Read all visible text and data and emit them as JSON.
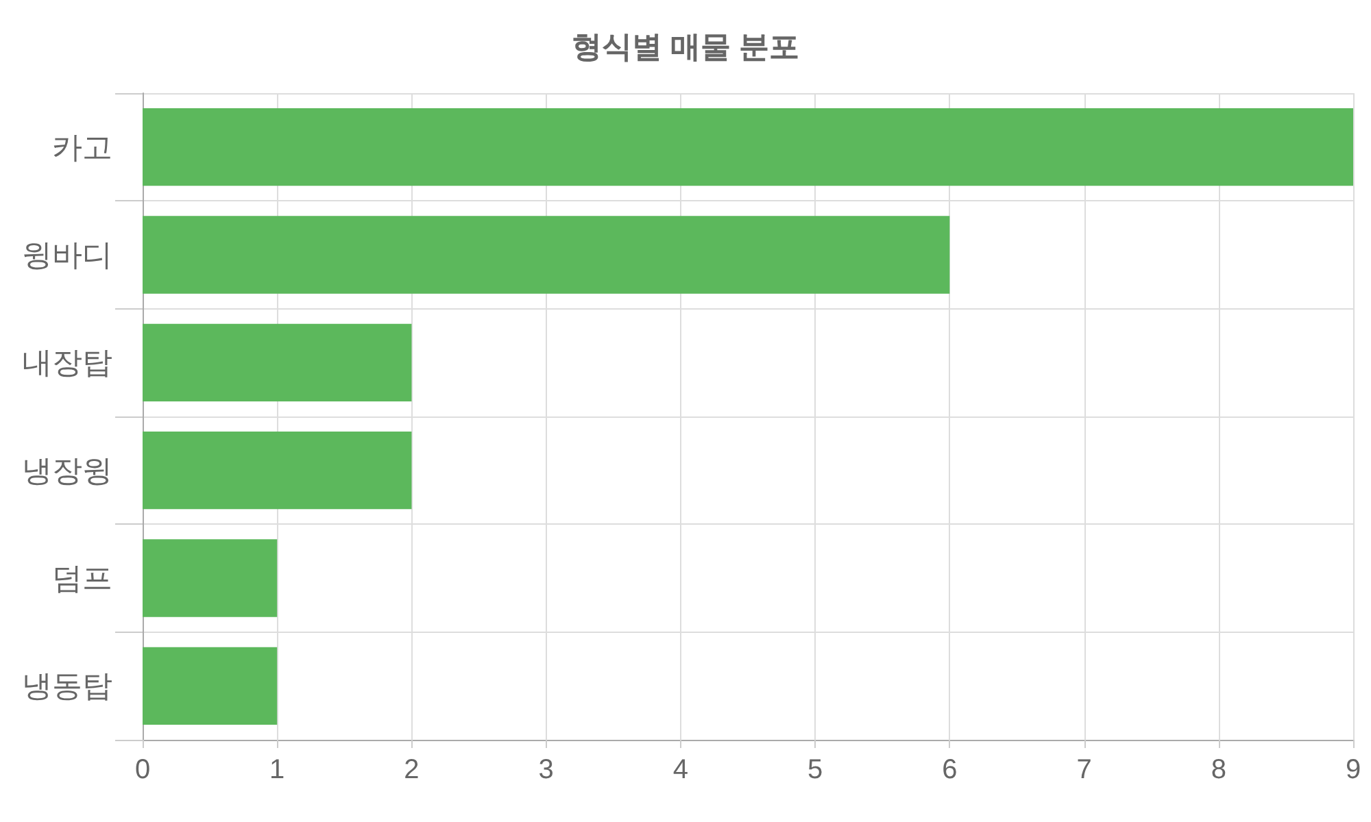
{
  "chart_data": {
    "type": "bar",
    "title": "형식별 매물 분포",
    "orientation": "horizontal",
    "categories": [
      "카고",
      "윙바디",
      "내장탑",
      "냉장윙",
      "덤프",
      "냉동탑"
    ],
    "values": [
      9,
      6,
      2,
      2,
      1,
      1
    ],
    "color": "#5cb85c",
    "xlim": [
      0,
      9
    ],
    "xticks": [
      0,
      1,
      2,
      3,
      4,
      5,
      6,
      7,
      8,
      9
    ],
    "grid": true
  }
}
